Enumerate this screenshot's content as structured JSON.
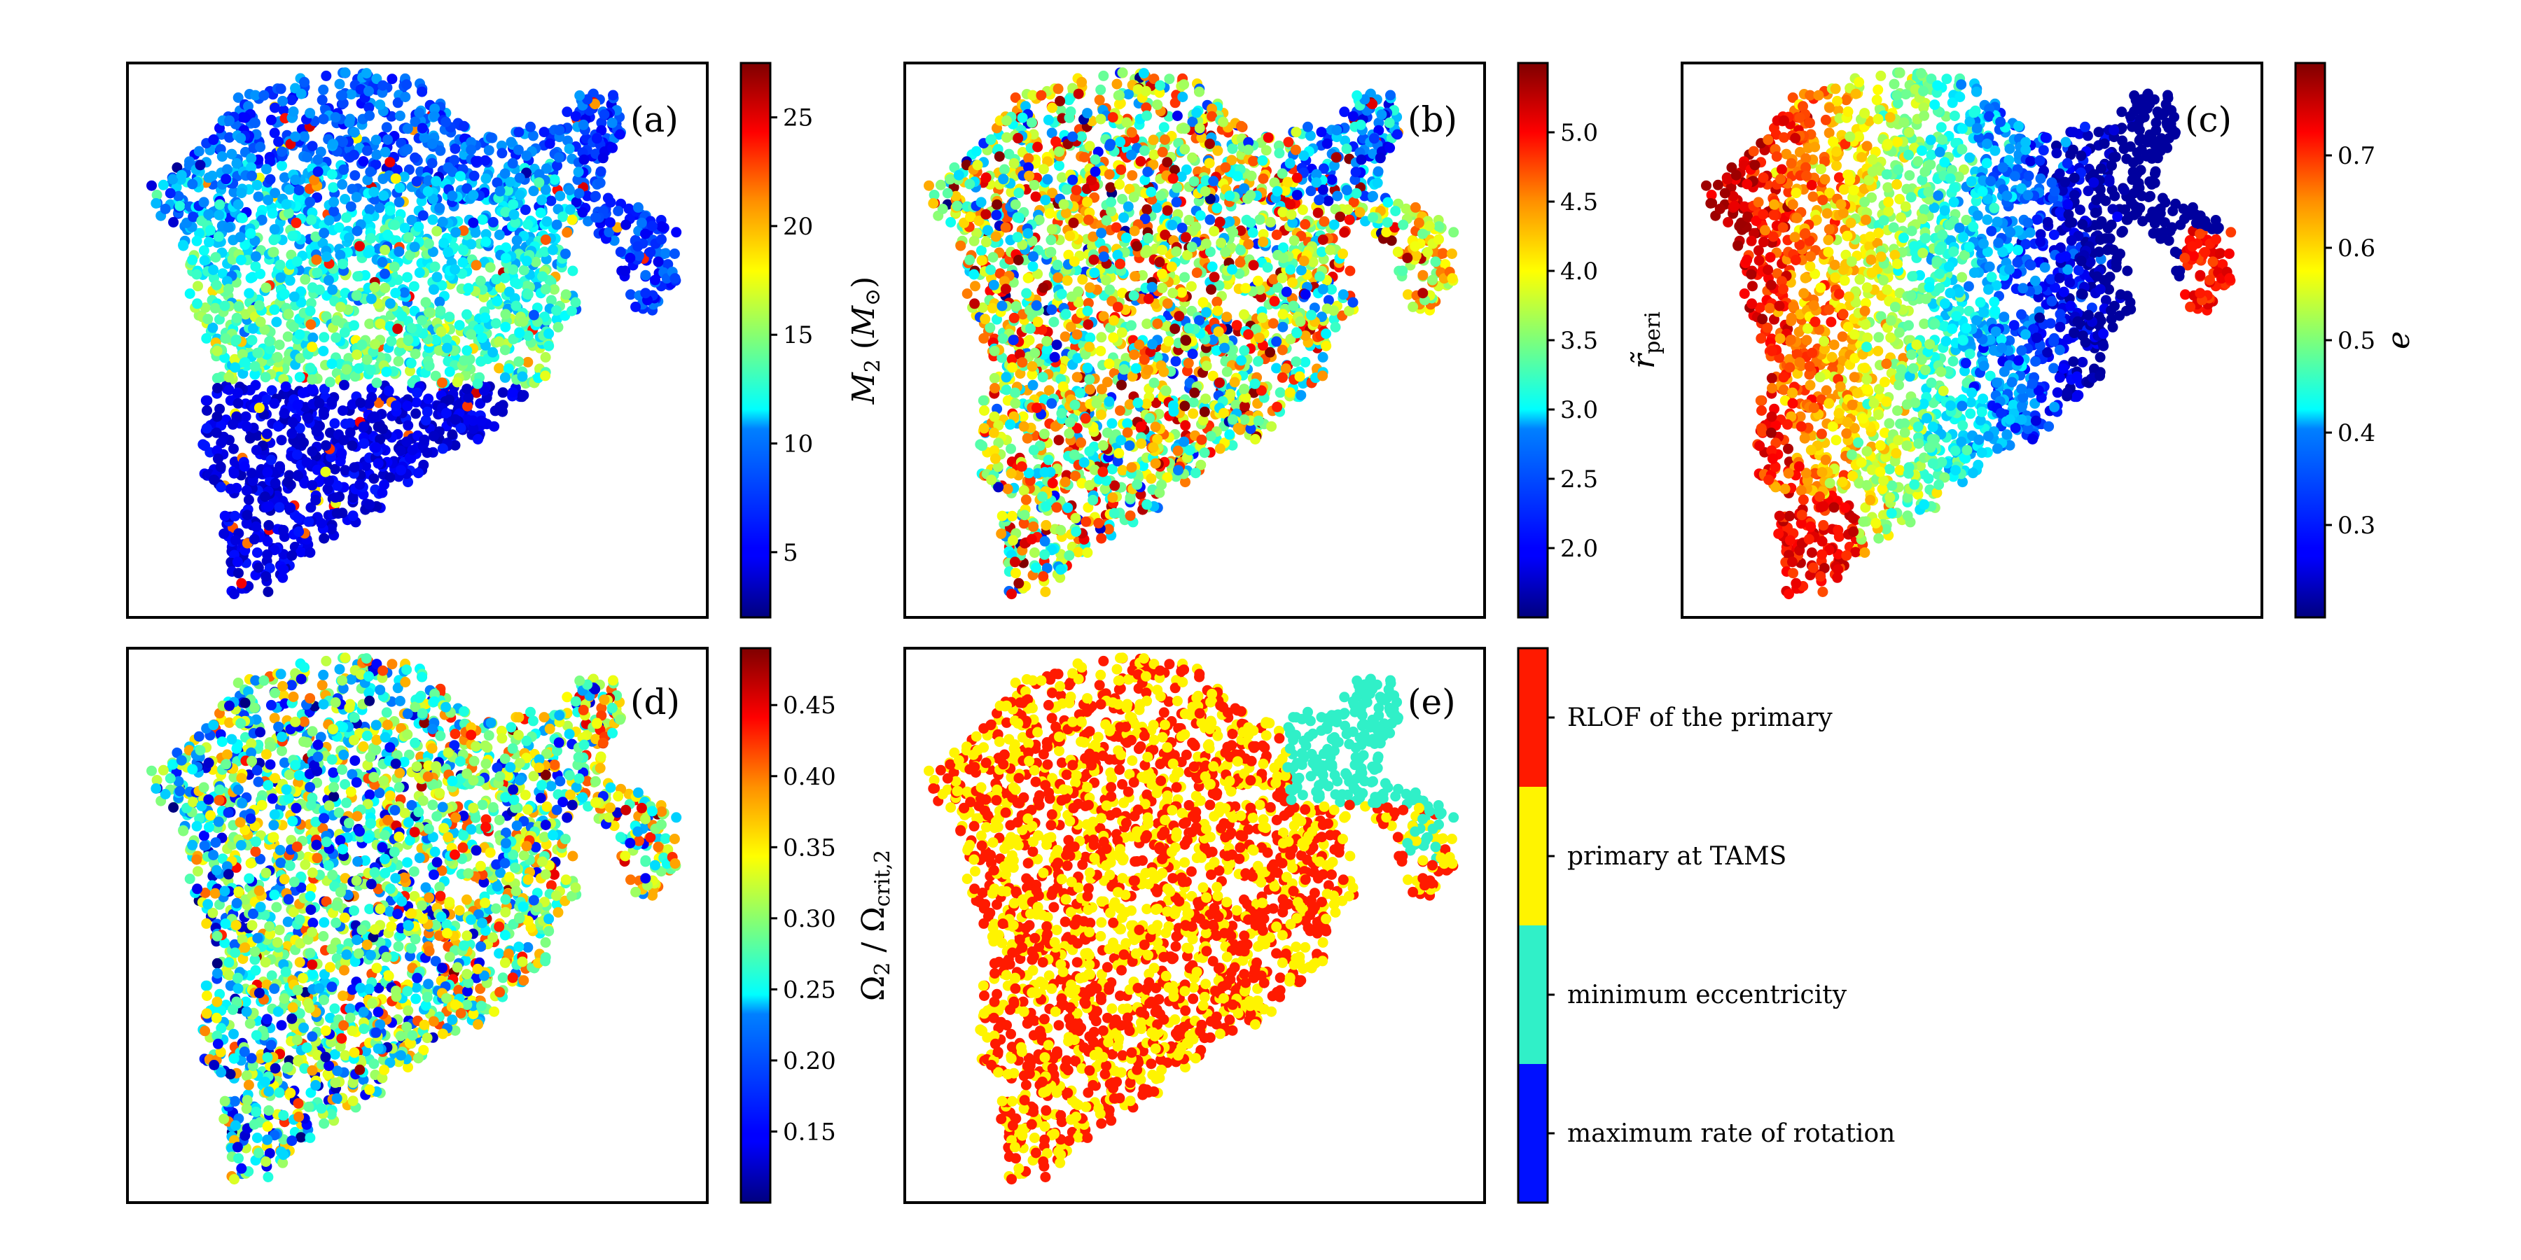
{
  "chart_data": [
    {
      "type": "scatter",
      "panel_label": "(a)",
      "colorbar": {
        "label": "M₂ (M⊙)",
        "colormap": "jet",
        "range": [
          2,
          27.5
        ],
        "ticks": [
          "5",
          "10",
          "15",
          "20",
          "25"
        ],
        "tick_values": [
          5,
          10,
          15,
          20,
          25
        ]
      },
      "pattern": "low-mass band at bottom, intermediate in middle, low at top and right lobe"
    },
    {
      "type": "scatter",
      "panel_label": "(b)",
      "colorbar": {
        "label": "r̃peri",
        "colormap": "jet",
        "range": [
          1.5,
          5.5
        ],
        "ticks": [
          "2.0",
          "2.5",
          "3.0",
          "3.5",
          "4.0",
          "4.5",
          "5.0"
        ],
        "tick_values": [
          2.0,
          2.5,
          3.0,
          3.5,
          4.0,
          4.5,
          5.0
        ]
      },
      "pattern": "mixed values, low values in the upper right lobe"
    },
    {
      "type": "scatter",
      "panel_label": "(c)",
      "colorbar": {
        "label": "e",
        "colormap": "jet",
        "range": [
          0.2,
          0.8
        ],
        "ticks": [
          "0.3",
          "0.4",
          "0.5",
          "0.6",
          "0.7"
        ],
        "tick_values": [
          0.3,
          0.4,
          0.5,
          0.6,
          0.7
        ]
      },
      "pattern": "high eccentricity on the left edge decreasing to the right"
    },
    {
      "type": "scatter",
      "panel_label": "(d)",
      "colorbar": {
        "label": "Ω₂ / Ωcrit,2",
        "colormap": "jet",
        "range": [
          0.1,
          0.49
        ],
        "ticks": [
          "0.15",
          "0.20",
          "0.25",
          "0.30",
          "0.35",
          "0.40",
          "0.45"
        ],
        "tick_values": [
          0.15,
          0.2,
          0.25,
          0.3,
          0.35,
          0.4,
          0.45
        ]
      },
      "pattern": "mixed values, moderately higher on the right"
    },
    {
      "type": "scatter",
      "panel_label": "(e)",
      "colorbar": {
        "label": "",
        "categorical": true,
        "categories": [
          "RLOF of the primary",
          "primary at TAMS",
          "minimum eccentricity",
          "maximum rate of rotation"
        ],
        "colors": [
          "#ff1a00",
          "#fff400",
          "#30f0c8",
          "#0010ff"
        ]
      },
      "pattern": "interleaved red and yellow points, cyan in upper right lobe"
    }
  ]
}
